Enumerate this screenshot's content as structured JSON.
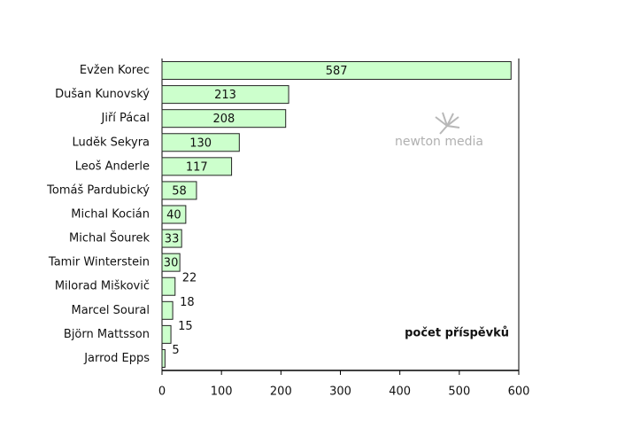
{
  "chart_data": {
    "type": "bar",
    "orientation": "horizontal",
    "categories": [
      "Evžen Korec",
      "Dušan Kunovský",
      "Jiří Pácal",
      "Luděk Sekyra",
      "Leoš Anderle",
      "Tomáš Pardubický",
      "Michal Kocián",
      "Michal Šourek",
      "Tamir Winterstein",
      "Milorad Miškovič",
      "Marcel Soural",
      "Björn Mattsson",
      "Jarrod Epps"
    ],
    "values": [
      587,
      213,
      208,
      130,
      117,
      58,
      40,
      33,
      30,
      22,
      18,
      15,
      5
    ],
    "color": "#ccffcc",
    "xlim": [
      0,
      600
    ],
    "xticks": [
      0,
      100,
      200,
      300,
      400,
      500,
      600
    ],
    "annotation": "počet příspěvků",
    "watermark": "newton media"
  }
}
